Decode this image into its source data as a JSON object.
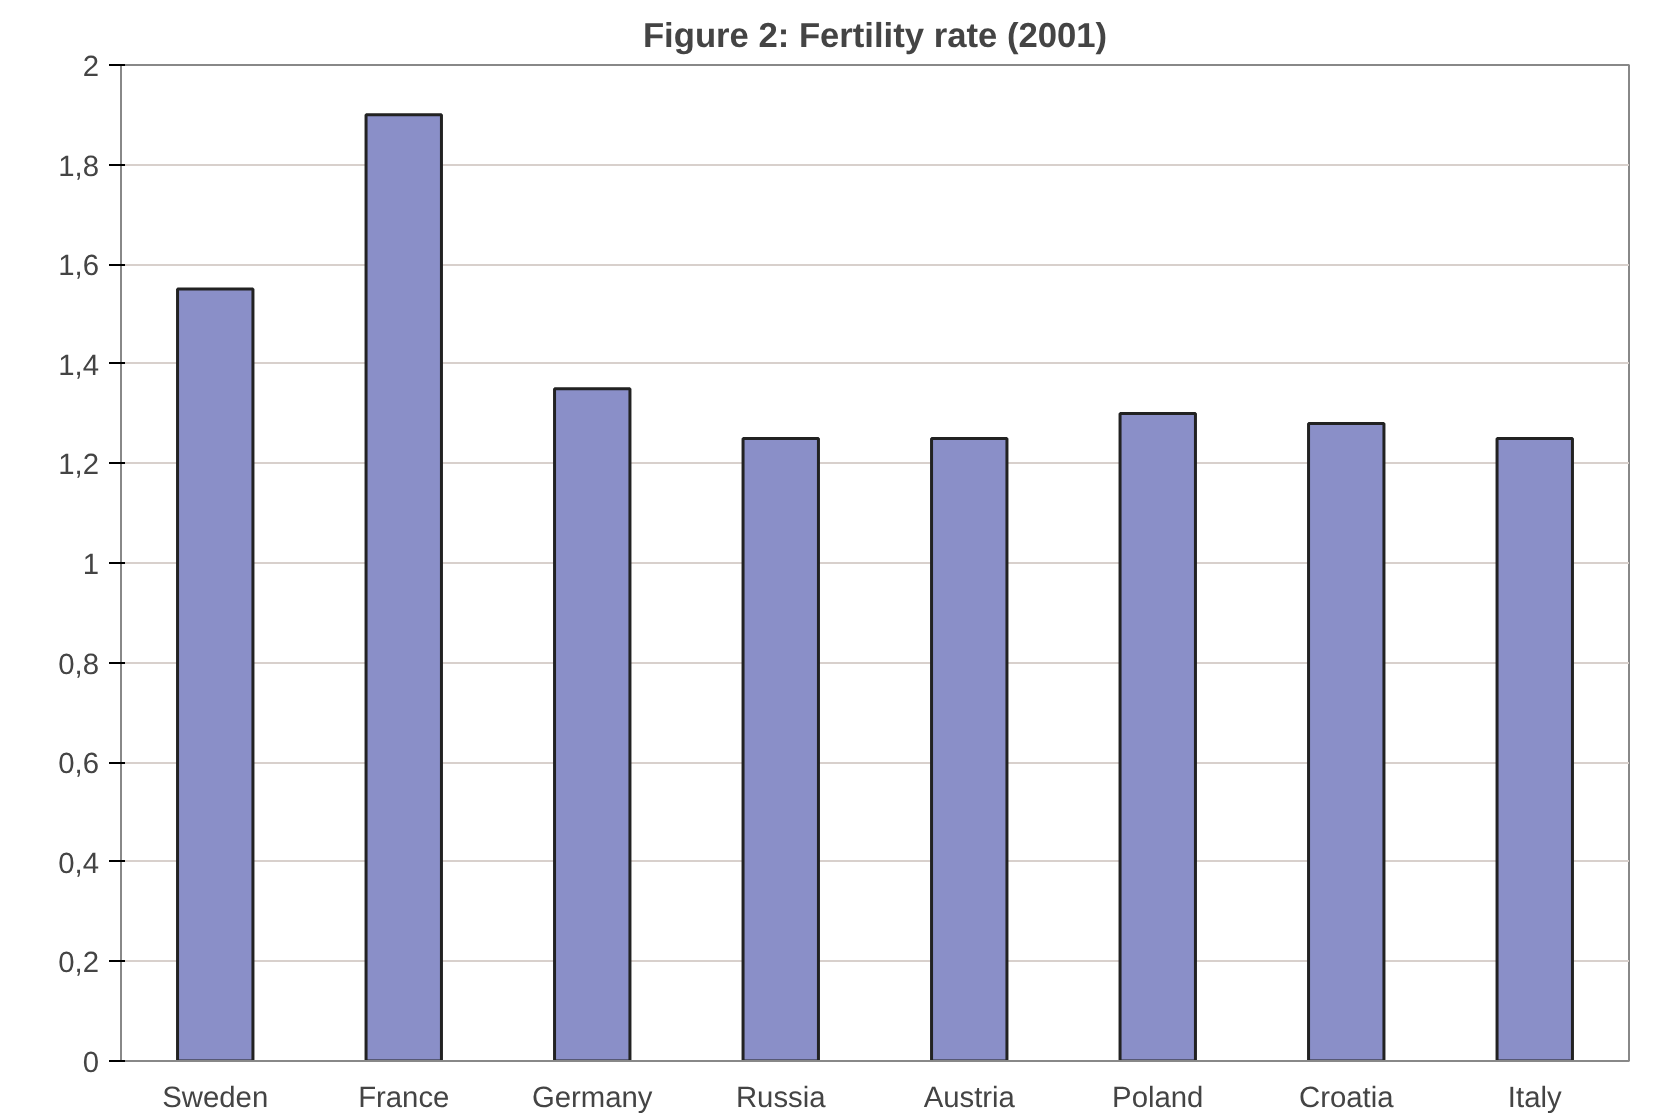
{
  "chart_data": {
    "type": "bar",
    "title": "Figure 2: Fertility rate (2001)",
    "categories": [
      "Sweden",
      "France",
      "Germany",
      "Russia",
      "Austria",
      "Poland",
      "Croatia",
      "Italy"
    ],
    "values": [
      1.55,
      1.9,
      1.35,
      1.25,
      1.25,
      1.3,
      1.28,
      1.25
    ],
    "color": "#8a8fc8",
    "ylim": [
      0,
      2
    ],
    "yticks": [
      0,
      {
        "value": 0.2,
        "label": "0,2"
      },
      {
        "value": 0.4,
        "label": "0,4"
      },
      {
        "value": 0.6,
        "label": "0,6"
      },
      {
        "value": 0.8,
        "label": "0,8"
      },
      1,
      {
        "value": 1.2,
        "label": "1,2"
      },
      {
        "value": 1.4,
        "label": "1,4"
      },
      {
        "value": 1.6,
        "label": "1,6"
      },
      {
        "value": 1.8,
        "label": "1,8"
      },
      2
    ],
    "grid": "y"
  }
}
